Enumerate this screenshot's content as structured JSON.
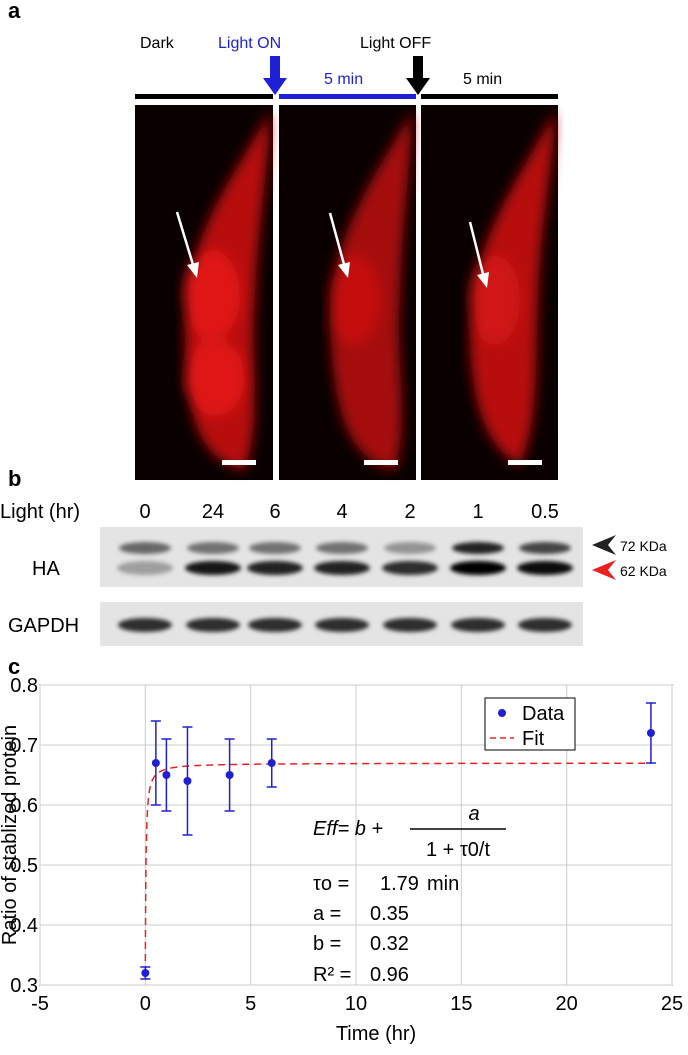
{
  "panel_a": {
    "label": "a",
    "conditions": [
      "Dark",
      "Light ON",
      "Light OFF"
    ],
    "durations": [
      "5 min",
      "5 min"
    ]
  },
  "panel_b": {
    "label": "b",
    "row_header": "Light (hr)",
    "lanes": [
      "0",
      "24",
      "6",
      "4",
      "2",
      "1",
      "0.5"
    ],
    "rows": [
      "HA",
      "GAPDH"
    ],
    "markers": [
      "72 KDa",
      "62 KDa"
    ]
  },
  "chart_data": {
    "type": "scatter",
    "panel_label": "c",
    "xlabel": "Time (hr)",
    "ylabel": "Ratio of stablized protein",
    "x": [
      0,
      0.5,
      1,
      2,
      4,
      6,
      24
    ],
    "series": [
      {
        "name": "Data",
        "color": "#1f1fd6",
        "values": [
          0.32,
          0.67,
          0.65,
          0.64,
          0.65,
          0.67,
          0.72
        ],
        "errors": [
          0.01,
          0.07,
          0.06,
          0.09,
          0.06,
          0.04,
          0.05
        ]
      }
    ],
    "fit": {
      "name": "Fit",
      "color": "#e8231f",
      "formula_left": "Eff= b +",
      "numerator": "a",
      "denominator": "1 + τ0/t",
      "tau0_label": "τo =",
      "tau0": 1.79,
      "tau0_unit": "min",
      "a_label": "a =",
      "a": 0.35,
      "b_label": "b =",
      "b": 0.32,
      "r2_label": "R² =",
      "r2": 0.96
    },
    "xlim": [
      -5,
      25
    ],
    "xticks": [
      -5,
      0,
      5,
      10,
      15,
      20,
      25
    ],
    "ylim": [
      0.3,
      0.8
    ],
    "yticks": [
      0.3,
      0.4,
      0.5,
      0.6,
      0.7,
      0.8
    ],
    "grid": true,
    "legend": "upper right"
  }
}
